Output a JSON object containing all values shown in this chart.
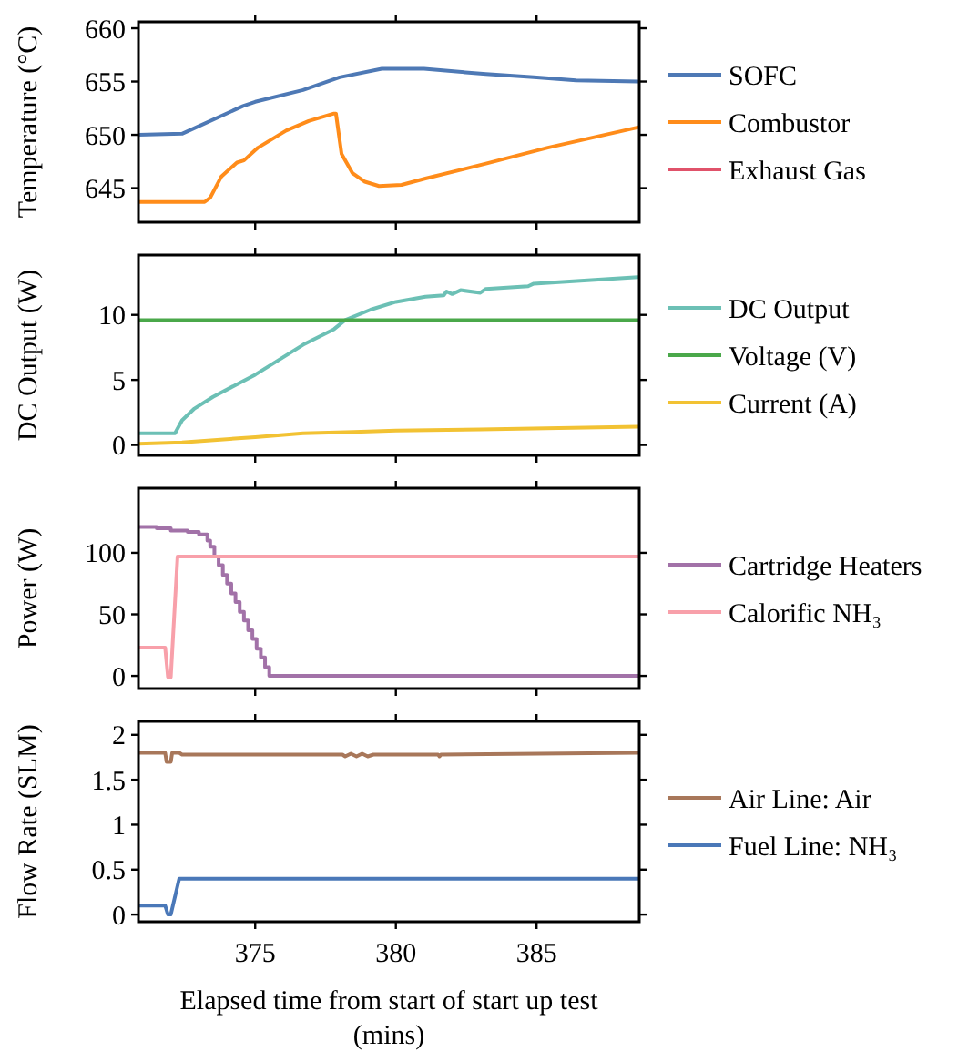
{
  "chart_data": [
    {
      "type": "line",
      "ylabel": "Temperature (°C)",
      "xlim": [
        370.85,
        388.65
      ],
      "xticks": [
        375,
        380,
        385
      ],
      "ylim": [
        641.8,
        660.6
      ],
      "yticks": [
        645,
        650,
        655,
        660
      ],
      "legend": "right",
      "tick_labels": "y",
      "series": [
        {
          "name": "SOFC",
          "color": "#4e79b5",
          "x": [
            370.85,
            372.4,
            374.57,
            375,
            376.7,
            378,
            379.5,
            381,
            383.2,
            384.9,
            386.4,
            388.6
          ],
          "values": [
            650,
            650.1,
            652.7,
            653.1,
            654.2,
            655.4,
            656.2,
            656.2,
            655.7,
            655.4,
            655.1,
            655.0
          ]
        },
        {
          "name": "Combustor",
          "color": "#ff8c1a",
          "x": [
            370.85,
            373.2,
            373.4,
            373.8,
            374.35,
            374.6,
            375.1,
            376.1,
            376.9,
            377.8,
            377.87,
            378.07,
            378.46,
            378.9,
            379.4,
            380.2,
            381.05,
            383.2,
            385.4,
            388.6
          ],
          "values": [
            643.7,
            643.7,
            644.1,
            646.1,
            647.4,
            647.6,
            648.8,
            650.4,
            651.3,
            652.0,
            652.0,
            648.2,
            646.4,
            645.6,
            645.2,
            645.3,
            645.9,
            647.3,
            648.8,
            650.7
          ]
        },
        {
          "name": "Exhaust Gas",
          "color": "#e0526a"
        }
      ]
    },
    {
      "type": "line",
      "ylabel": "DC Output (W)",
      "xlim": [
        370.85,
        388.65
      ],
      "xticks": [
        375,
        380,
        385
      ],
      "ylim": [
        -0.8,
        14.6
      ],
      "yticks": [
        0,
        5,
        10
      ],
      "legend": "right",
      "tick_labels": "y",
      "series": [
        {
          "name": "DC Output",
          "color": "#6cc0b5",
          "x": [
            370.85,
            372.15,
            372.4,
            372.84,
            373.5,
            375,
            376.7,
            377.8,
            378.2,
            379.1,
            380,
            381.05,
            381.7,
            381.8,
            382.0,
            382.3,
            383,
            383.2,
            384.7,
            384.9,
            388.6
          ],
          "values": [
            0.9,
            0.9,
            1.9,
            2.8,
            3.7,
            5.4,
            7.7,
            8.9,
            9.6,
            10.4,
            11.0,
            11.4,
            11.5,
            11.8,
            11.6,
            11.9,
            11.7,
            12.0,
            12.2,
            12.4,
            12.9
          ]
        },
        {
          "name": "Voltage (V)",
          "color": "#4aa84a",
          "x": [
            370.85,
            388.65
          ],
          "values": [
            9.6,
            9.6
          ]
        },
        {
          "name": "Current (A)",
          "color": "#f2c233",
          "x": [
            370.85,
            372.4,
            375,
            376.7,
            378.5,
            380,
            383,
            388.6
          ],
          "values": [
            0.1,
            0.2,
            0.6,
            0.9,
            1.0,
            1.1,
            1.2,
            1.4
          ]
        }
      ]
    },
    {
      "type": "line",
      "ylabel": "Power (W)",
      "xlim": [
        370.85,
        388.65
      ],
      "xticks": [
        375,
        380,
        385
      ],
      "ylim": [
        -10.3,
        152.5
      ],
      "yticks": [
        0,
        50,
        100
      ],
      "legend": "right",
      "tick_labels": "y",
      "series": [
        {
          "name": "Cartridge Heaters",
          "type": "step",
          "color": "#a272a8",
          "x": [
            370.85,
            371.5,
            372.0,
            372.6,
            373.0,
            373.3,
            373.4,
            373.55,
            373.7,
            373.85,
            374.0,
            374.15,
            374.3,
            374.45,
            374.6,
            374.75,
            374.9,
            375.05,
            375.2,
            375.35,
            375.5,
            388.65
          ],
          "values": [
            121,
            120,
            118,
            117,
            115,
            110,
            105,
            97,
            90,
            82,
            75,
            67,
            60,
            52,
            45,
            37,
            30,
            22,
            15,
            7,
            0,
            0
          ]
        },
        {
          "name": "Calorific NH₃",
          "color": "#f8a0aa",
          "x": [
            370.85,
            371.8,
            371.9,
            372.0,
            372.24,
            388.65
          ],
          "values": [
            23,
            23,
            -1,
            -1,
            97,
            97
          ]
        }
      ]
    },
    {
      "type": "line",
      "ylabel": "Flow Rate (SLM)",
      "xlabel": "Elapsed time from start of start up test (mins)",
      "xlim": [
        370.85,
        388.65
      ],
      "xticks": [
        375,
        380,
        385
      ],
      "ylim": [
        -0.08,
        2.15
      ],
      "yticks": [
        0,
        0.5,
        1,
        1.5,
        2
      ],
      "legend": "right",
      "series": [
        {
          "name": "Air Line: Air",
          "color": "#a8775a",
          "x": [
            370.85,
            371.8,
            371.85,
            372.0,
            372.05,
            372.3,
            372.4,
            378.1,
            378.2,
            378.4,
            378.6,
            378.8,
            379.0,
            379.2,
            381.5,
            381.55,
            381.6,
            388.65
          ],
          "values": [
            1.8,
            1.8,
            1.7,
            1.7,
            1.8,
            1.8,
            1.78,
            1.78,
            1.76,
            1.79,
            1.76,
            1.79,
            1.76,
            1.78,
            1.78,
            1.76,
            1.78,
            1.8
          ]
        },
        {
          "name": "Fuel Line: NH₃",
          "color": "#4a78b8",
          "x": [
            370.85,
            371.8,
            371.9,
            372.0,
            372.3,
            388.65
          ],
          "values": [
            0.1,
            0.1,
            0,
            0,
            0.4,
            0.4
          ]
        }
      ]
    }
  ]
}
